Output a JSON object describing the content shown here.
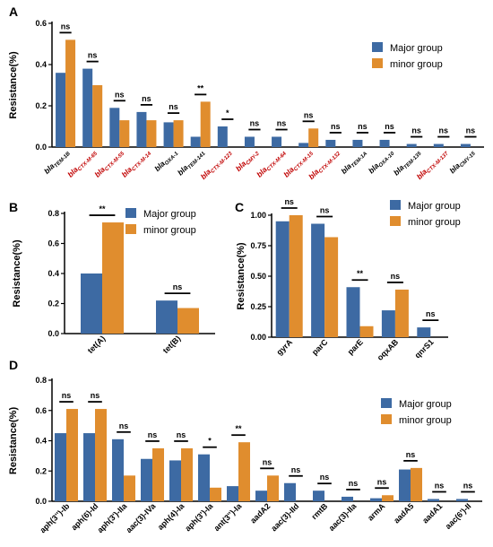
{
  "colors": {
    "major": "#3d6aa3",
    "minor": "#e08d2e",
    "red_label": "#c00000",
    "black": "#000000"
  },
  "chart_data": [
    {
      "panel": "A",
      "type": "bar",
      "ylabel": "Resistance(%)",
      "ylim": [
        0,
        0.6
      ],
      "yticks": [
        "0.0",
        "0.2",
        "0.4",
        "0.6"
      ],
      "legend": [
        "Major group",
        "minor group"
      ],
      "legend_position": "top-right",
      "categories": [
        {
          "base": "bla",
          "sub": "TEM-1B",
          "red": false
        },
        {
          "base": "bla",
          "sub": "CTX-M-65",
          "red": true
        },
        {
          "base": "bla",
          "sub": "CTX-M-55",
          "red": true
        },
        {
          "base": "bla",
          "sub": "CTX-M-14",
          "red": true
        },
        {
          "base": "bla",
          "sub": "OXA-1",
          "red": false
        },
        {
          "base": "bla",
          "sub": "TEM-141",
          "red": false
        },
        {
          "base": "bla",
          "sub": "CTX-M-123",
          "red": true
        },
        {
          "base": "bla",
          "sub": "CMY-2",
          "red": true
        },
        {
          "base": "bla",
          "sub": "CTX-M-64",
          "red": true
        },
        {
          "base": "bla",
          "sub": "CTX-M-15",
          "red": true
        },
        {
          "base": "bla",
          "sub": "CTX-M-132",
          "red": true
        },
        {
          "base": "bla",
          "sub": "TEM-1A",
          "red": false
        },
        {
          "base": "bla",
          "sub": "OXA-10",
          "red": false
        },
        {
          "base": "bla",
          "sub": "TEM-135",
          "red": false
        },
        {
          "base": "bla",
          "sub": "CTX-M-137",
          "red": true
        },
        {
          "base": "bla",
          "sub": "CMY-15",
          "red": false
        }
      ],
      "series": [
        {
          "name": "Major group",
          "values": [
            0.36,
            0.38,
            0.19,
            0.17,
            0.12,
            0.05,
            0.1,
            0.05,
            0.05,
            0.02,
            0.035,
            0.035,
            0.035,
            0.015,
            0.015,
            0.015
          ]
        },
        {
          "name": "minor group",
          "values": [
            0.52,
            0.3,
            0.13,
            0.13,
            0.13,
            0.22,
            0.0,
            0.0,
            0.0,
            0.09,
            0.0,
            0.0,
            0.0,
            0.0,
            0.0,
            0.0
          ]
        }
      ],
      "significance": [
        "ns",
        "ns",
        "ns",
        "ns",
        "ns",
        "**",
        "*",
        "ns",
        "ns",
        "ns",
        "ns",
        "ns",
        "ns",
        "ns",
        "ns",
        "ns"
      ]
    },
    {
      "panel": "B",
      "type": "bar",
      "ylabel": "Resistance(%)",
      "ylim": [
        0,
        0.8
      ],
      "yticks": [
        "0.0",
        "0.2",
        "0.4",
        "0.6",
        "0.8"
      ],
      "legend": [
        "Major group",
        "minor group"
      ],
      "legend_position": "top-right",
      "categories": [
        "tet(A)",
        "tet(B)"
      ],
      "series": [
        {
          "name": "Major group",
          "values": [
            0.4,
            0.22
          ]
        },
        {
          "name": "minor group",
          "values": [
            0.74,
            0.17
          ]
        }
      ],
      "significance": [
        "**",
        "ns"
      ]
    },
    {
      "panel": "C",
      "type": "bar",
      "ylabel": "Resistance(%)",
      "ylim": [
        0,
        1.0
      ],
      "yticks": [
        "0.00",
        "0.25",
        "0.50",
        "0.75",
        "1.00"
      ],
      "legend": [
        "Major group",
        "minor group"
      ],
      "legend_position": "top-right",
      "categories": [
        "gyrA",
        "parC",
        "parE",
        "oqxAB",
        "qnrS1"
      ],
      "series": [
        {
          "name": "Major group",
          "values": [
            0.95,
            0.93,
            0.41,
            0.22,
            0.08
          ]
        },
        {
          "name": "minor group",
          "values": [
            1.0,
            0.82,
            0.09,
            0.39,
            0.0
          ]
        }
      ],
      "significance": [
        "ns",
        "ns",
        "**",
        "ns",
        "ns"
      ]
    },
    {
      "panel": "D",
      "type": "bar",
      "ylabel": "Resistance(%)",
      "ylim": [
        0,
        0.8
      ],
      "yticks": [
        "0.0",
        "0.2",
        "0.4",
        "0.6",
        "0.8"
      ],
      "legend": [
        "Major group",
        "minor group"
      ],
      "legend_position": "top-right",
      "categories": [
        "aph(3'')-Ib",
        "aph(6)-Id",
        "aph(3')-IIa",
        "aac(3)-IVa",
        "aph(4)-Ia",
        "aph(3')-Ia",
        "ant(3'')-Ia",
        "aadA2",
        "aac(3)-IId",
        "rmtB",
        "aac(3)-IIa",
        "armA",
        "aadA5",
        "aadA1",
        "aac(6')-II"
      ],
      "series": [
        {
          "name": "Major group",
          "values": [
            0.45,
            0.45,
            0.41,
            0.28,
            0.27,
            0.31,
            0.1,
            0.07,
            0.12,
            0.07,
            0.03,
            0.02,
            0.21,
            0.015,
            0.015
          ]
        },
        {
          "name": "minor group",
          "values": [
            0.61,
            0.61,
            0.17,
            0.35,
            0.35,
            0.09,
            0.39,
            0.17,
            0.0,
            0.0,
            0.0,
            0.04,
            0.22,
            0.0,
            0.0
          ]
        }
      ],
      "significance": [
        "ns",
        "ns",
        "ns",
        "ns",
        "ns",
        "*",
        "**",
        "ns",
        "ns",
        "ns",
        "ns",
        "ns",
        "ns",
        "ns",
        "ns"
      ]
    }
  ]
}
